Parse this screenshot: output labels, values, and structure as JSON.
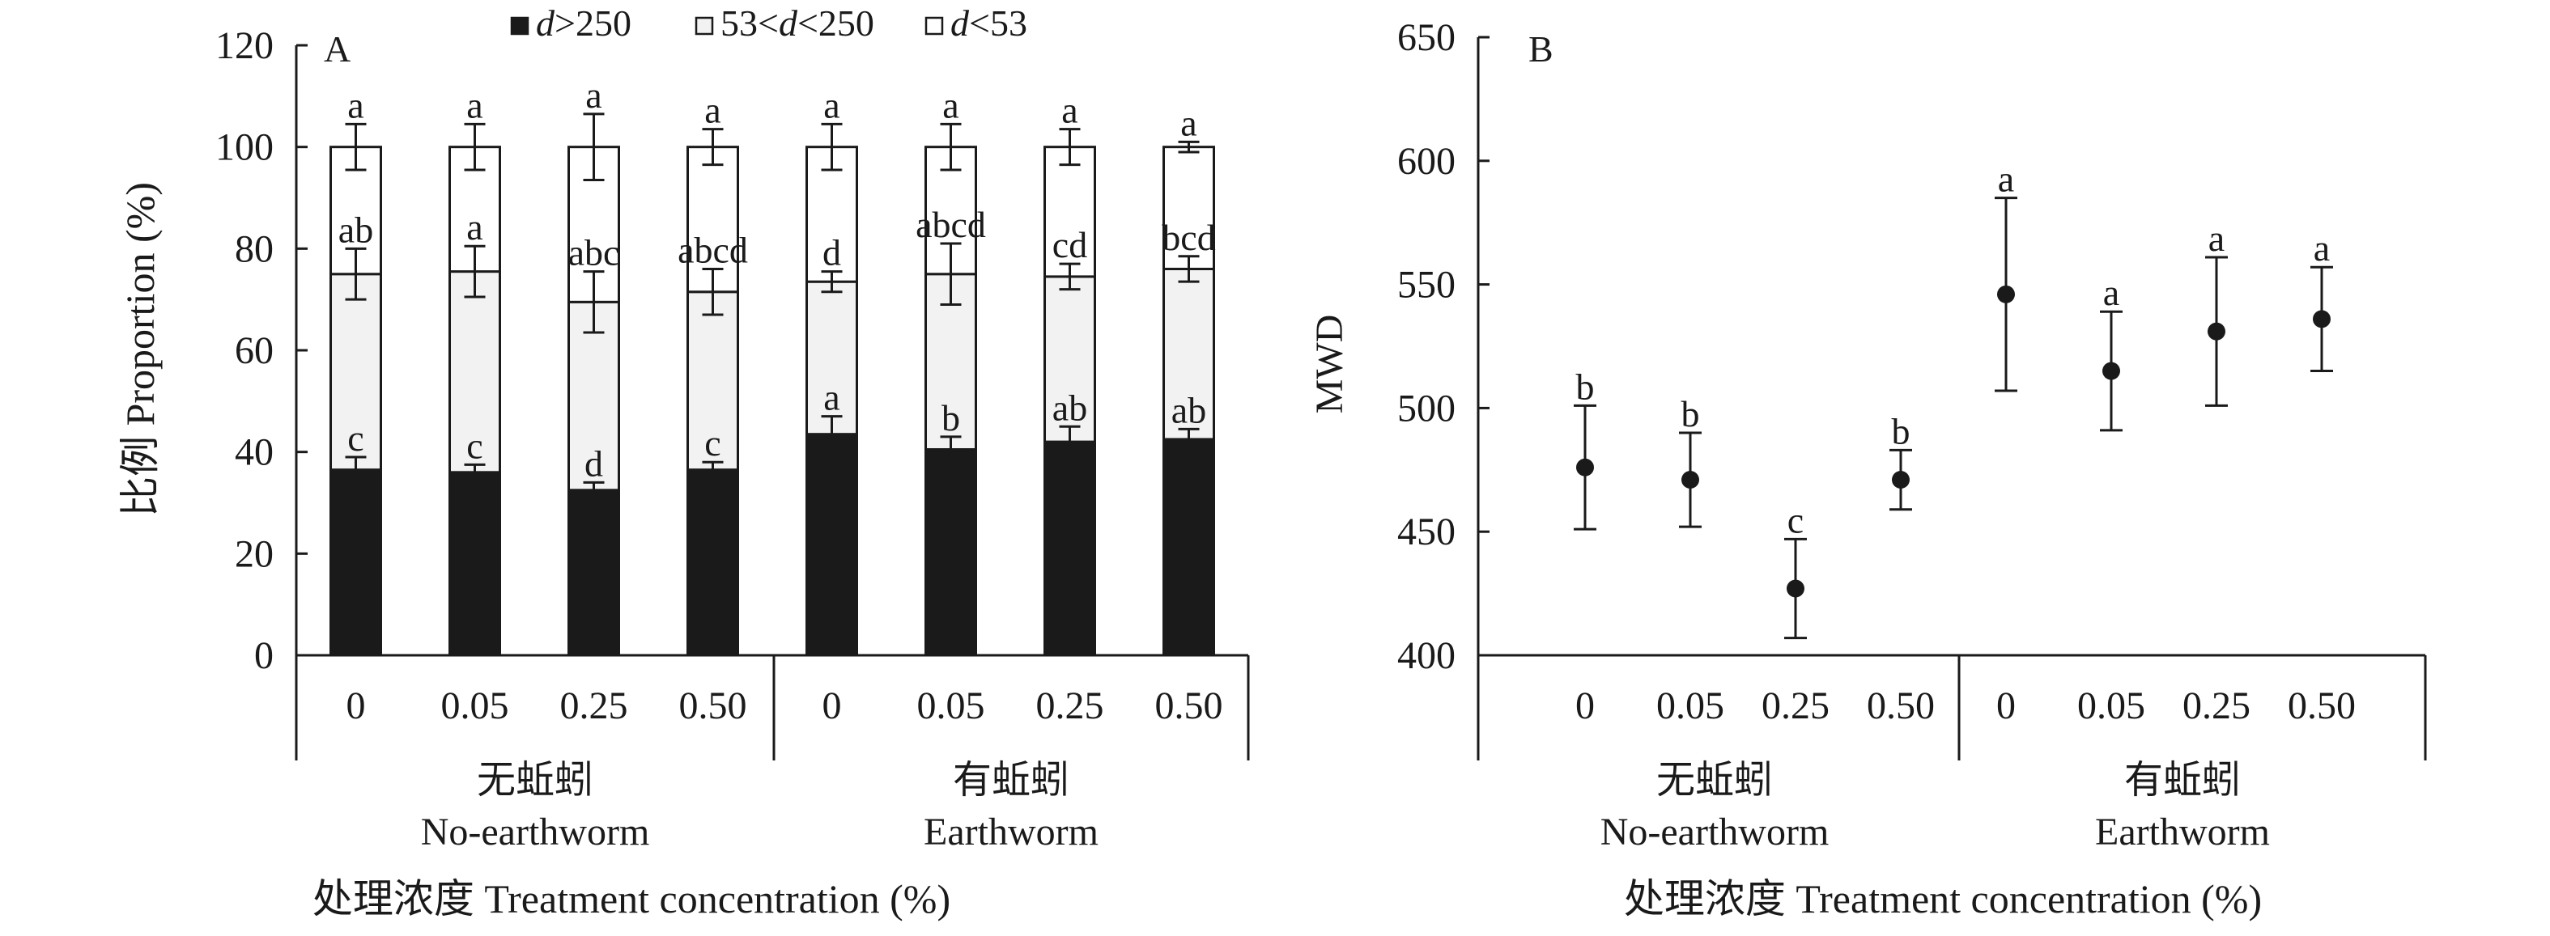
{
  "chart_data": [
    {
      "type": "bar",
      "stacked": true,
      "panel_label": "A",
      "ylabel": "比例 Proportion (%)",
      "xlabel": "处理浓度 Treatment concentration (%)",
      "ylim": [
        0,
        120
      ],
      "yticks": [
        "0",
        "20",
        "40",
        "60",
        "80",
        "100",
        "120"
      ],
      "categories": [
        "0",
        "0.05",
        "0.25",
        "0.50",
        "0",
        "0.05",
        "0.25",
        "0.50"
      ],
      "groups": [
        {
          "cn": "无蚯蚓",
          "en": "No-earthworm"
        },
        {
          "cn": "有蚯蚓",
          "en": "Earthworm"
        }
      ],
      "legend": [
        {
          "label": "d>250",
          "color": "#1a1a1a"
        },
        {
          "label": "53<d<250",
          "color": "#f2f2f2"
        },
        {
          "label": "d<53",
          "color": "#ffffff"
        }
      ],
      "cumulative_tops": {
        "d>250": [
          36.5,
          36.0,
          32.5,
          36.5,
          43.5,
          40.5,
          42.0,
          42.5
        ],
        "53<d<250": [
          75.0,
          75.5,
          69.5,
          71.5,
          73.5,
          75.0,
          74.5,
          76.0
        ],
        "d<53": [
          100,
          100,
          100,
          100,
          100,
          100,
          100,
          100
        ]
      },
      "series": [
        {
          "name": "d>250",
          "values": [
            36.5,
            36.0,
            32.5,
            36.5,
            43.5,
            40.5,
            42.0,
            42.5
          ],
          "err": [
            2.5,
            1.5,
            1.5,
            1.5,
            3.5,
            2.5,
            3.0,
            2.0
          ],
          "letters": [
            "c",
            "c",
            "d",
            "c",
            "a",
            "b",
            "ab",
            "ab"
          ]
        },
        {
          "name": "53<d<250",
          "values": [
            38.5,
            39.5,
            37.0,
            35.0,
            30.0,
            34.5,
            32.5,
            33.5
          ],
          "err": [
            5.0,
            5.0,
            6.0,
            4.5,
            2.0,
            6.0,
            2.5,
            2.5
          ],
          "letters": [
            "ab",
            "a",
            "abc",
            "abcd",
            "d",
            "abcd",
            "cd",
            "bcd"
          ]
        },
        {
          "name": "d<53",
          "values": [
            25.0,
            24.5,
            30.5,
            28.5,
            26.5,
            25.0,
            25.5,
            24.0
          ],
          "err": [
            4.5,
            4.5,
            6.5,
            3.5,
            4.5,
            4.5,
            3.5,
            1.0
          ],
          "letters": [
            "a",
            "a",
            "a",
            "a",
            "a",
            "a",
            "a",
            "a"
          ]
        }
      ]
    },
    {
      "type": "scatter",
      "panel_label": "B",
      "ylabel": "MWD",
      "xlabel": "处理浓度 Treatment concentration (%)",
      "ylim": [
        400,
        650
      ],
      "yticks": [
        "400",
        "450",
        "500",
        "550",
        "600",
        "650"
      ],
      "categories": [
        "0",
        "0.05",
        "0.25",
        "0.50",
        "0",
        "0.05",
        "0.25",
        "0.50"
      ],
      "groups": [
        {
          "cn": "无蚯蚓",
          "en": "No-earthworm"
        },
        {
          "cn": "有蚯蚓",
          "en": "Earthworm"
        }
      ],
      "series": [
        {
          "values": [
            476,
            471,
            427,
            471,
            546,
            515,
            531,
            536
          ],
          "err": [
            25,
            19,
            20,
            12,
            39,
            24,
            30,
            21
          ],
          "letters": [
            "b",
            "b",
            "c",
            "b",
            "a",
            "a",
            "a",
            "a"
          ]
        }
      ]
    }
  ]
}
